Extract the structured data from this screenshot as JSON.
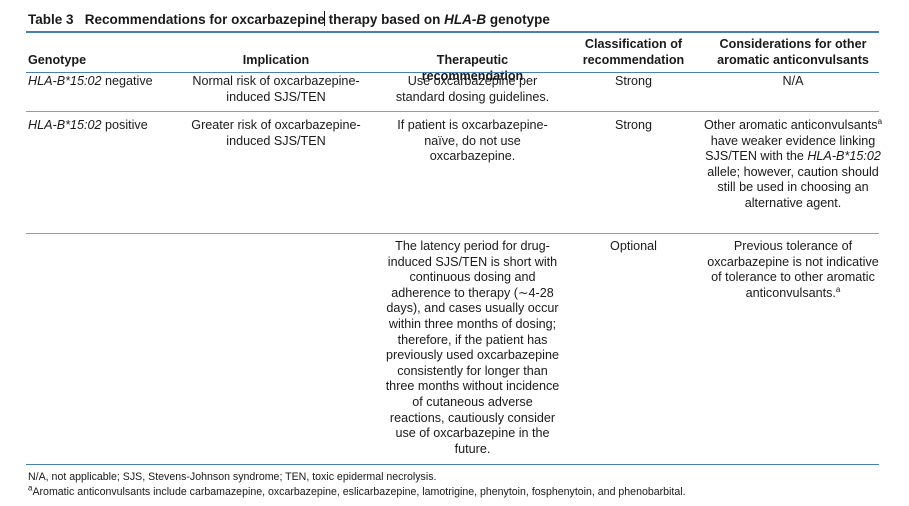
{
  "title": {
    "label": "Table 3",
    "text_before": "Recommendations for oxcarbazepine",
    "text_middle": " therapy based on ",
    "gene": "HLA-B",
    "text_after": " genotype"
  },
  "headers": {
    "genotype": "Genotype",
    "implication": "Implication",
    "therapeutic": "Therapeutic recommendation",
    "classification": "Classification of recommendation",
    "considerations": "Considerations for other aromatic anticonvulsants"
  },
  "rows": [
    {
      "genotype_allele": "HLA-B*15:02",
      "genotype_status": " negative",
      "implication": "Normal risk of oxcarbazepine-induced SJS/TEN",
      "therapeutic": "Use oxcarbazepine per standard dosing guidelines.",
      "classification": "Strong",
      "considerations": "N/A"
    },
    {
      "genotype_allele": "HLA-B*15:02",
      "genotype_status": " positive",
      "implication": "Greater risk of oxcarbazepine-induced SJS/TEN",
      "therapeutic": "If patient is oxcarbazepine-naïve, do not use oxcarbazepine.",
      "classification": "Strong",
      "considerations_part1": "Other aromatic anticonvulsants",
      "considerations_sup": "a",
      "considerations_part2": " have weaker evidence linking SJS/TEN with the ",
      "considerations_allele": "HLA-B*15:02",
      "considerations_part3": " allele; however, caution should still be used in choosing an alternative agent."
    },
    {
      "therapeutic": "The latency period for drug-induced SJS/TEN is short with continuous dosing and adherence to therapy (∼4-28 days), and cases usually occur within three months of dosing; therefore, if the patient has previously used oxcarbazepine consistently for longer than three months without incidence of cutaneous adverse reactions, cautiously consider use of oxcarbazepine in the future.",
      "classification": "Optional",
      "considerations_text": "Previous tolerance of oxcarbazepine is not indicative of tolerance to other aromatic anticonvulsants.",
      "considerations_sup": "a"
    }
  ],
  "footnotes": {
    "abbrev": "N/A, not applicable; SJS, Stevens-Johnson syndrome; TEN, toxic epidermal necrolysis.",
    "note_marker": "a",
    "note_text": "Aromatic anticonvulsants include carbamazepine, oxcarbazepine, eslicarbazepine, lamotrigine, phenytoin, fosphenytoin, and phenobarbital."
  }
}
